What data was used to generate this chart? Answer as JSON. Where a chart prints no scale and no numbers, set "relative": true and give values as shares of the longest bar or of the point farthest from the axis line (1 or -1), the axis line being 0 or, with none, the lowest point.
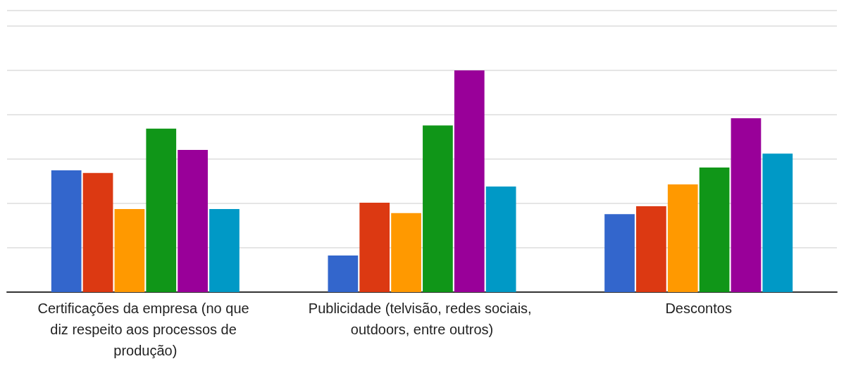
{
  "chart_data": {
    "type": "bar",
    "relative": true,
    "grid": true,
    "categories": [
      "Certificações da empresa (no que diz respeito aos processos de produção)",
      "Publicidade (telvisão, redes sociais, outdoors, entre outros)",
      "Descontos"
    ],
    "series": [
      {
        "color": "#3366cc",
        "values": [
          0.549,
          0.165,
          0.352
        ]
      },
      {
        "color": "#dc3912",
        "values": [
          0.537,
          0.403,
          0.387
        ]
      },
      {
        "color": "#ff9900",
        "values": [
          0.375,
          0.356,
          0.486
        ]
      },
      {
        "color": "#109618",
        "values": [
          0.737,
          0.752,
          0.562
        ]
      },
      {
        "color": "#990099",
        "values": [
          0.641,
          1,
          0.784
        ]
      },
      {
        "color": "#0099c6",
        "values": [
          0.375,
          0.476,
          0.625
        ]
      }
    ]
  }
}
